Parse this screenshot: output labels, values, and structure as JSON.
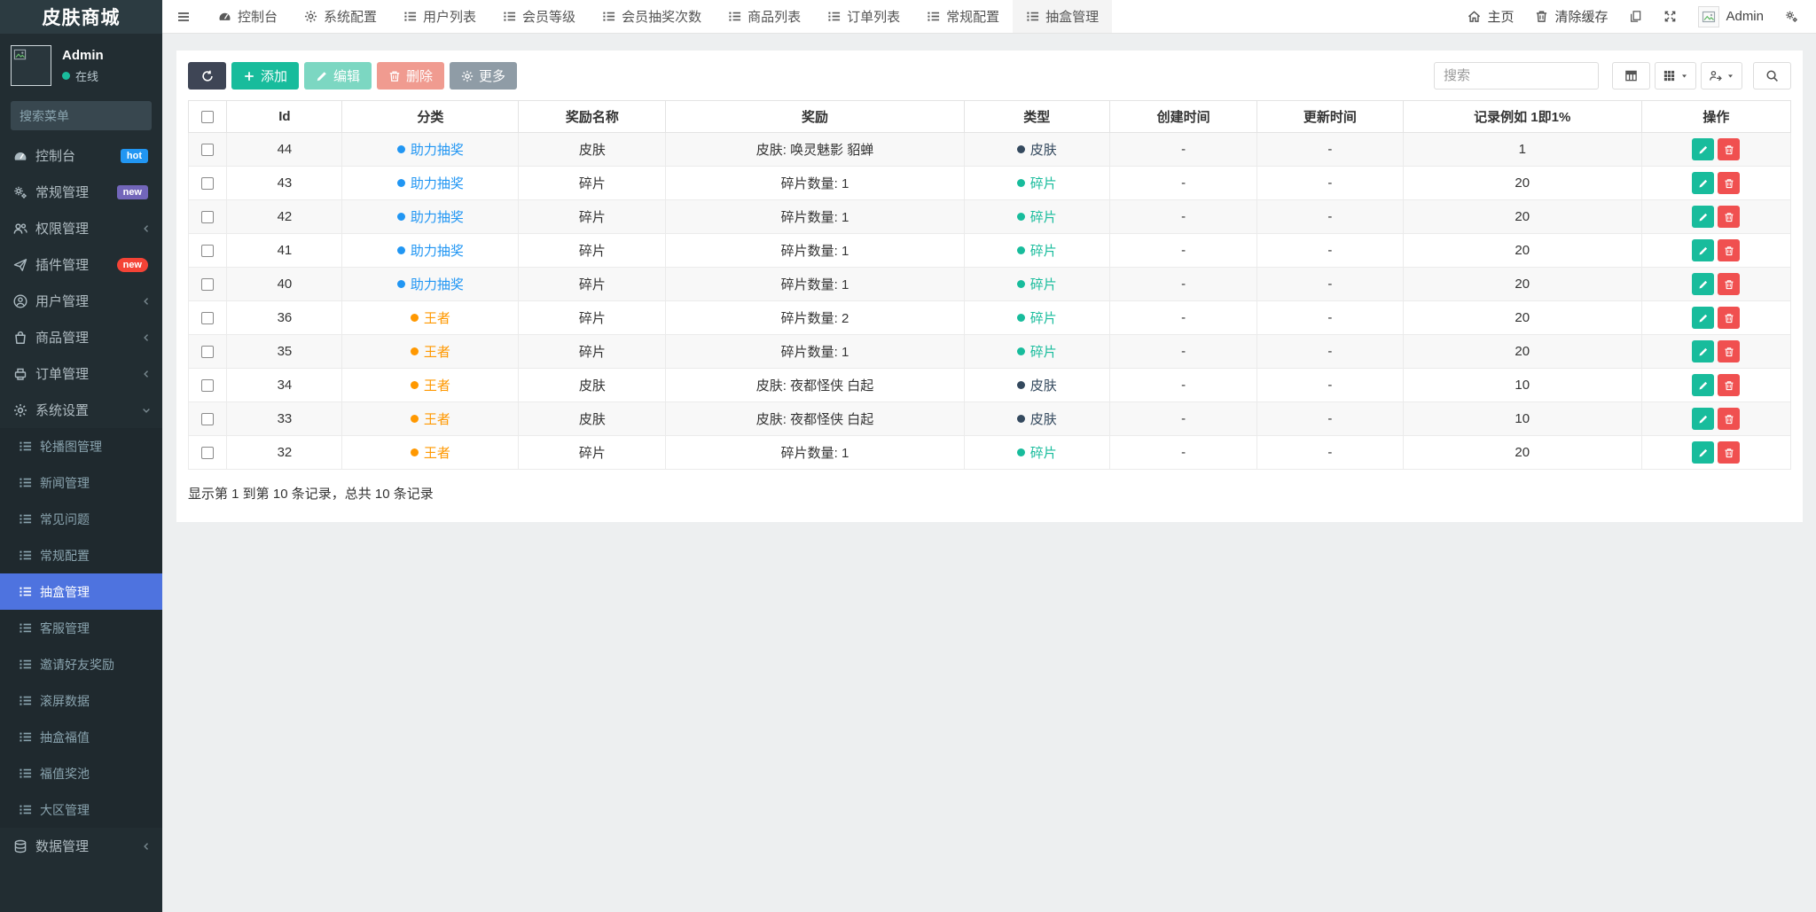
{
  "app": {
    "title": "皮肤商城"
  },
  "sidebar": {
    "user": {
      "name": "Admin",
      "status": "在线",
      "status_color": "#1abc9c"
    },
    "search_placeholder": "搜索菜单",
    "items": [
      {
        "label": "控制台",
        "icon": "gauge",
        "badge": "hot",
        "badge_style": "hot"
      },
      {
        "label": "常规管理",
        "icon": "cogs",
        "badge": "new",
        "badge_style": "new-purple"
      },
      {
        "label": "权限管理",
        "icon": "users",
        "chevron": "left"
      },
      {
        "label": "插件管理",
        "icon": "plane",
        "badge": "new",
        "badge_style": "new-red"
      },
      {
        "label": "用户管理",
        "icon": "user",
        "chevron": "left"
      },
      {
        "label": "商品管理",
        "icon": "bag",
        "chevron": "left"
      },
      {
        "label": "订单管理",
        "icon": "printer",
        "chevron": "left"
      },
      {
        "label": "系统设置",
        "icon": "gear",
        "chevron": "down",
        "open": true,
        "children": [
          {
            "label": "轮播图管理"
          },
          {
            "label": "新闻管理"
          },
          {
            "label": "常见问题"
          },
          {
            "label": "常规配置"
          },
          {
            "label": "抽盒管理",
            "active": true
          },
          {
            "label": "客服管理"
          },
          {
            "label": "邀请好友奖励"
          },
          {
            "label": "滚屏数据"
          },
          {
            "label": "抽盒福值"
          },
          {
            "label": "福值奖池"
          },
          {
            "label": "大区管理"
          }
        ]
      },
      {
        "label": "数据管理",
        "icon": "db",
        "chevron": "left"
      }
    ],
    "active_item": "抽盒管理"
  },
  "topnav": {
    "tabs": [
      {
        "label": "控制台",
        "icon": "gauge"
      },
      {
        "label": "系统配置",
        "icon": "gear"
      },
      {
        "label": "用户列表",
        "icon": "list"
      },
      {
        "label": "会员等级",
        "icon": "list"
      },
      {
        "label": "会员抽奖次数",
        "icon": "list"
      },
      {
        "label": "商品列表",
        "icon": "list"
      },
      {
        "label": "订单列表",
        "icon": "list"
      },
      {
        "label": "常规配置",
        "icon": "list"
      },
      {
        "label": "抽盒管理",
        "icon": "list",
        "active": true
      }
    ],
    "home_label": "主页",
    "clear_cache_label": "清除缓存",
    "user_name": "Admin"
  },
  "toolbar": {
    "add_label": "添加",
    "edit_label": "编辑",
    "delete_label": "删除",
    "more_label": "更多",
    "search_placeholder": "搜索"
  },
  "table": {
    "headers": [
      "Id",
      "分类",
      "奖励名称",
      "奖励",
      "类型",
      "创建时间",
      "更新时间",
      "记录例如 1即1%",
      "操作"
    ],
    "category_colors": {
      "助力抽奖": "#2196f3",
      "王者": "#ff9800"
    },
    "type_colors": {
      "皮肤": "#34495e",
      "碎片": "#18bc9c"
    },
    "rows": [
      {
        "id": "44",
        "category": "助力抽奖",
        "category_color": "#2196f3",
        "reward_name": "皮肤",
        "reward": "皮肤: 唤灵魅影 貂蝉",
        "type": "皮肤",
        "type_color": "#34495e",
        "created": "-",
        "updated": "-",
        "rate": "1"
      },
      {
        "id": "43",
        "category": "助力抽奖",
        "category_color": "#2196f3",
        "reward_name": "碎片",
        "reward": "碎片数量: 1",
        "type": "碎片",
        "type_color": "#18bc9c",
        "created": "-",
        "updated": "-",
        "rate": "20"
      },
      {
        "id": "42",
        "category": "助力抽奖",
        "category_color": "#2196f3",
        "reward_name": "碎片",
        "reward": "碎片数量: 1",
        "type": "碎片",
        "type_color": "#18bc9c",
        "created": "-",
        "updated": "-",
        "rate": "20"
      },
      {
        "id": "41",
        "category": "助力抽奖",
        "category_color": "#2196f3",
        "reward_name": "碎片",
        "reward": "碎片数量: 1",
        "type": "碎片",
        "type_color": "#18bc9c",
        "created": "-",
        "updated": "-",
        "rate": "20"
      },
      {
        "id": "40",
        "category": "助力抽奖",
        "category_color": "#2196f3",
        "reward_name": "碎片",
        "reward": "碎片数量: 1",
        "type": "碎片",
        "type_color": "#18bc9c",
        "created": "-",
        "updated": "-",
        "rate": "20"
      },
      {
        "id": "36",
        "category": "王者",
        "category_color": "#ff9800",
        "reward_name": "碎片",
        "reward": "碎片数量: 2",
        "type": "碎片",
        "type_color": "#18bc9c",
        "created": "-",
        "updated": "-",
        "rate": "20"
      },
      {
        "id": "35",
        "category": "王者",
        "category_color": "#ff9800",
        "reward_name": "碎片",
        "reward": "碎片数量: 1",
        "type": "碎片",
        "type_color": "#18bc9c",
        "created": "-",
        "updated": "-",
        "rate": "20"
      },
      {
        "id": "34",
        "category": "王者",
        "category_color": "#ff9800",
        "reward_name": "皮肤",
        "reward": "皮肤: 夜都怪侠 白起",
        "type": "皮肤",
        "type_color": "#34495e",
        "created": "-",
        "updated": "-",
        "rate": "10"
      },
      {
        "id": "33",
        "category": "王者",
        "category_color": "#ff9800",
        "reward_name": "皮肤",
        "reward": "皮肤: 夜都怪侠 白起",
        "type": "皮肤",
        "type_color": "#34495e",
        "created": "-",
        "updated": "-",
        "rate": "10"
      },
      {
        "id": "32",
        "category": "王者",
        "category_color": "#ff9800",
        "reward_name": "碎片",
        "reward": "碎片数量: 1",
        "type": "碎片",
        "type_color": "#18bc9c",
        "created": "-",
        "updated": "-",
        "rate": "20"
      }
    ],
    "summary": "显示第 1 到第 10 条记录，总共 10 条记录"
  }
}
